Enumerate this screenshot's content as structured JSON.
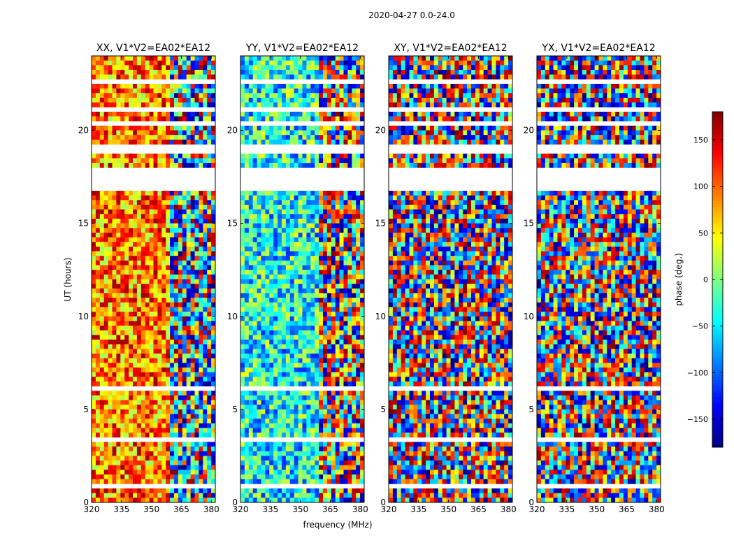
{
  "chart_data": {
    "type": "heatmap",
    "title": "2020-04-27 0.0-24.0",
    "xlabel": "frequency (MHz)",
    "ylabel": "UT (hours)",
    "xlim": [
      320,
      382
    ],
    "ylim": [
      0,
      24
    ],
    "xticks": [
      "320",
      "335",
      "350",
      "365",
      "380"
    ],
    "xtick_values": [
      320,
      335,
      350,
      365,
      380
    ],
    "yticks": [
      "0",
      "5",
      "10",
      "15",
      "20"
    ],
    "ytick_values": [
      0,
      5,
      10,
      15,
      20
    ],
    "panels": [
      {
        "title": "XX, V1*V2=EA02*EA12",
        "phase_offset": 90
      },
      {
        "title": "YY, V1*V2=EA02*EA12",
        "phase_offset": -40
      },
      {
        "title": "XY, V1*V2=EA02*EA12",
        "phase_offset": 0
      },
      {
        "title": "YX, V1*V2=EA02*EA12",
        "phase_offset": 10
      }
    ],
    "colorbar": {
      "label": "phase (deg.)",
      "range": [
        -180,
        180
      ],
      "ticks": [
        "150",
        "100",
        "50",
        "0",
        "−50",
        "−100",
        "−150"
      ],
      "tick_values": [
        150,
        100,
        50,
        0,
        -50,
        -100,
        -150
      ],
      "colormap": "jet"
    },
    "flagged_hours": [
      [
        16.8,
        18.0
      ],
      [
        18.8,
        19.3
      ],
      [
        20.2,
        20.5
      ],
      [
        21.0,
        21.2
      ],
      [
        6.0,
        6.3
      ],
      [
        6.45,
        6.55
      ],
      [
        22.6,
        22.8
      ],
      [
        14.9,
        15.0
      ],
      [
        3.3,
        3.4
      ],
      [
        1.9,
        2.0
      ],
      [
        1.3,
        1.35
      ],
      [
        0.85,
        0.95
      ]
    ]
  }
}
